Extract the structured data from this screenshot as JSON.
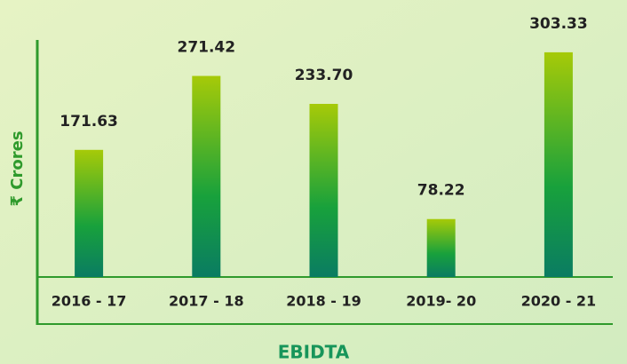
{
  "chart_data": {
    "type": "bar",
    "title": "EBIDTA",
    "y_label": "₹ Crores",
    "categories": [
      "2016 - 17",
      "2017 - 18",
      "2018 - 19",
      "2019- 20",
      "2020 - 21"
    ],
    "values": [
      171.63,
      271.42,
      233.7,
      78.22,
      303.33
    ],
    "value_labels": [
      "171.63",
      "271.42",
      "233.70",
      "78.22",
      "303.33"
    ],
    "gradient": [
      "#a6ca08",
      "#18a13c",
      "#0a7c62"
    ],
    "axis_color": "#2f9a2c",
    "ylim": [
      0,
      320
    ]
  }
}
